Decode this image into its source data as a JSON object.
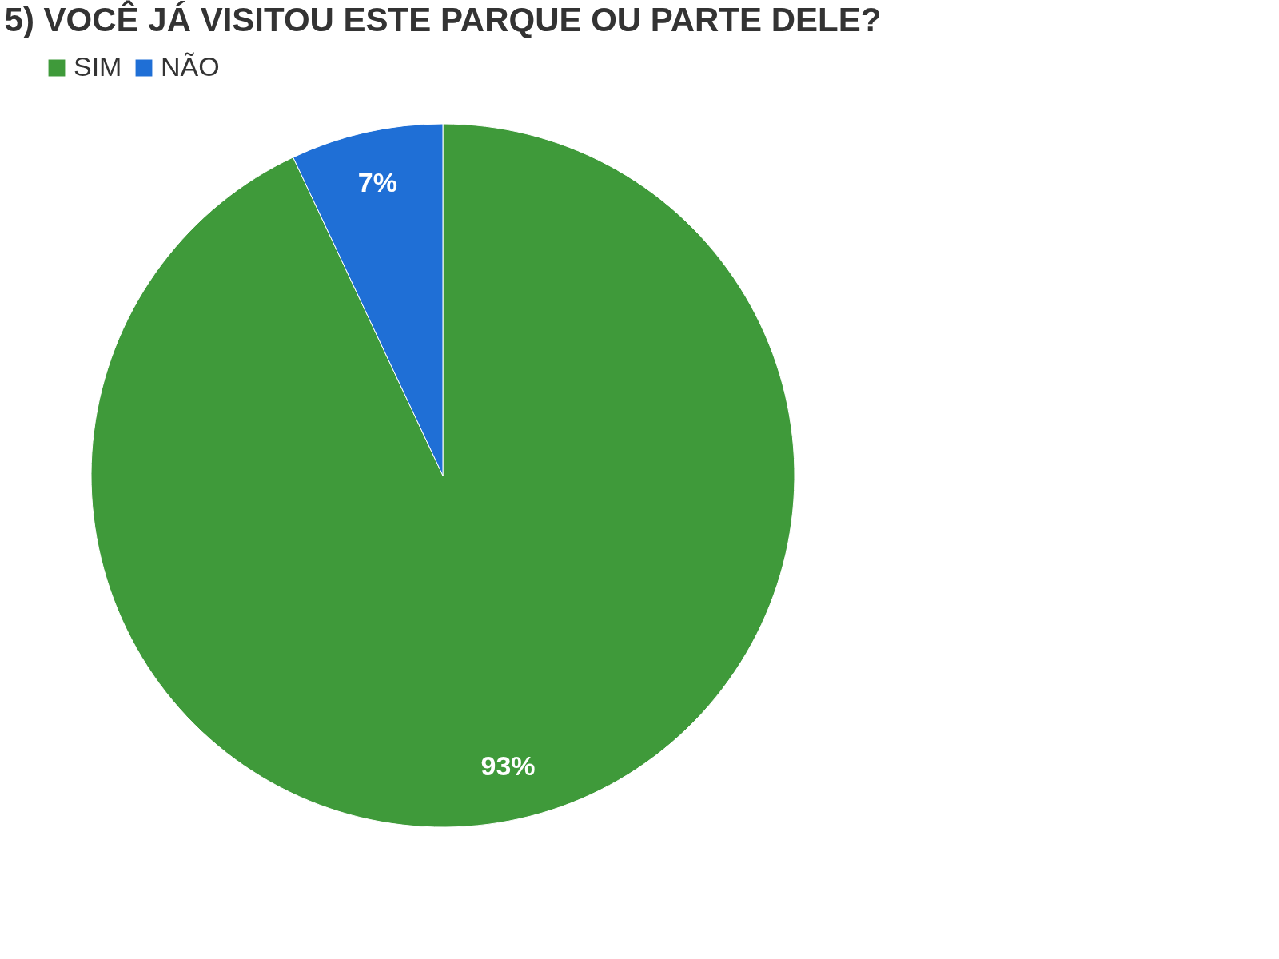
{
  "chart_data": {
    "type": "pie",
    "title": "5) VOCÊ JÁ VISITOU ESTE PARQUE OU PARTE DELE?",
    "categories": [
      "SIM",
      "NÃO"
    ],
    "values": [
      93,
      7
    ],
    "colors": [
      "#3f9a3a",
      "#1f6fd6"
    ],
    "value_labels": [
      "93%",
      "7%"
    ],
    "legend": "top"
  }
}
